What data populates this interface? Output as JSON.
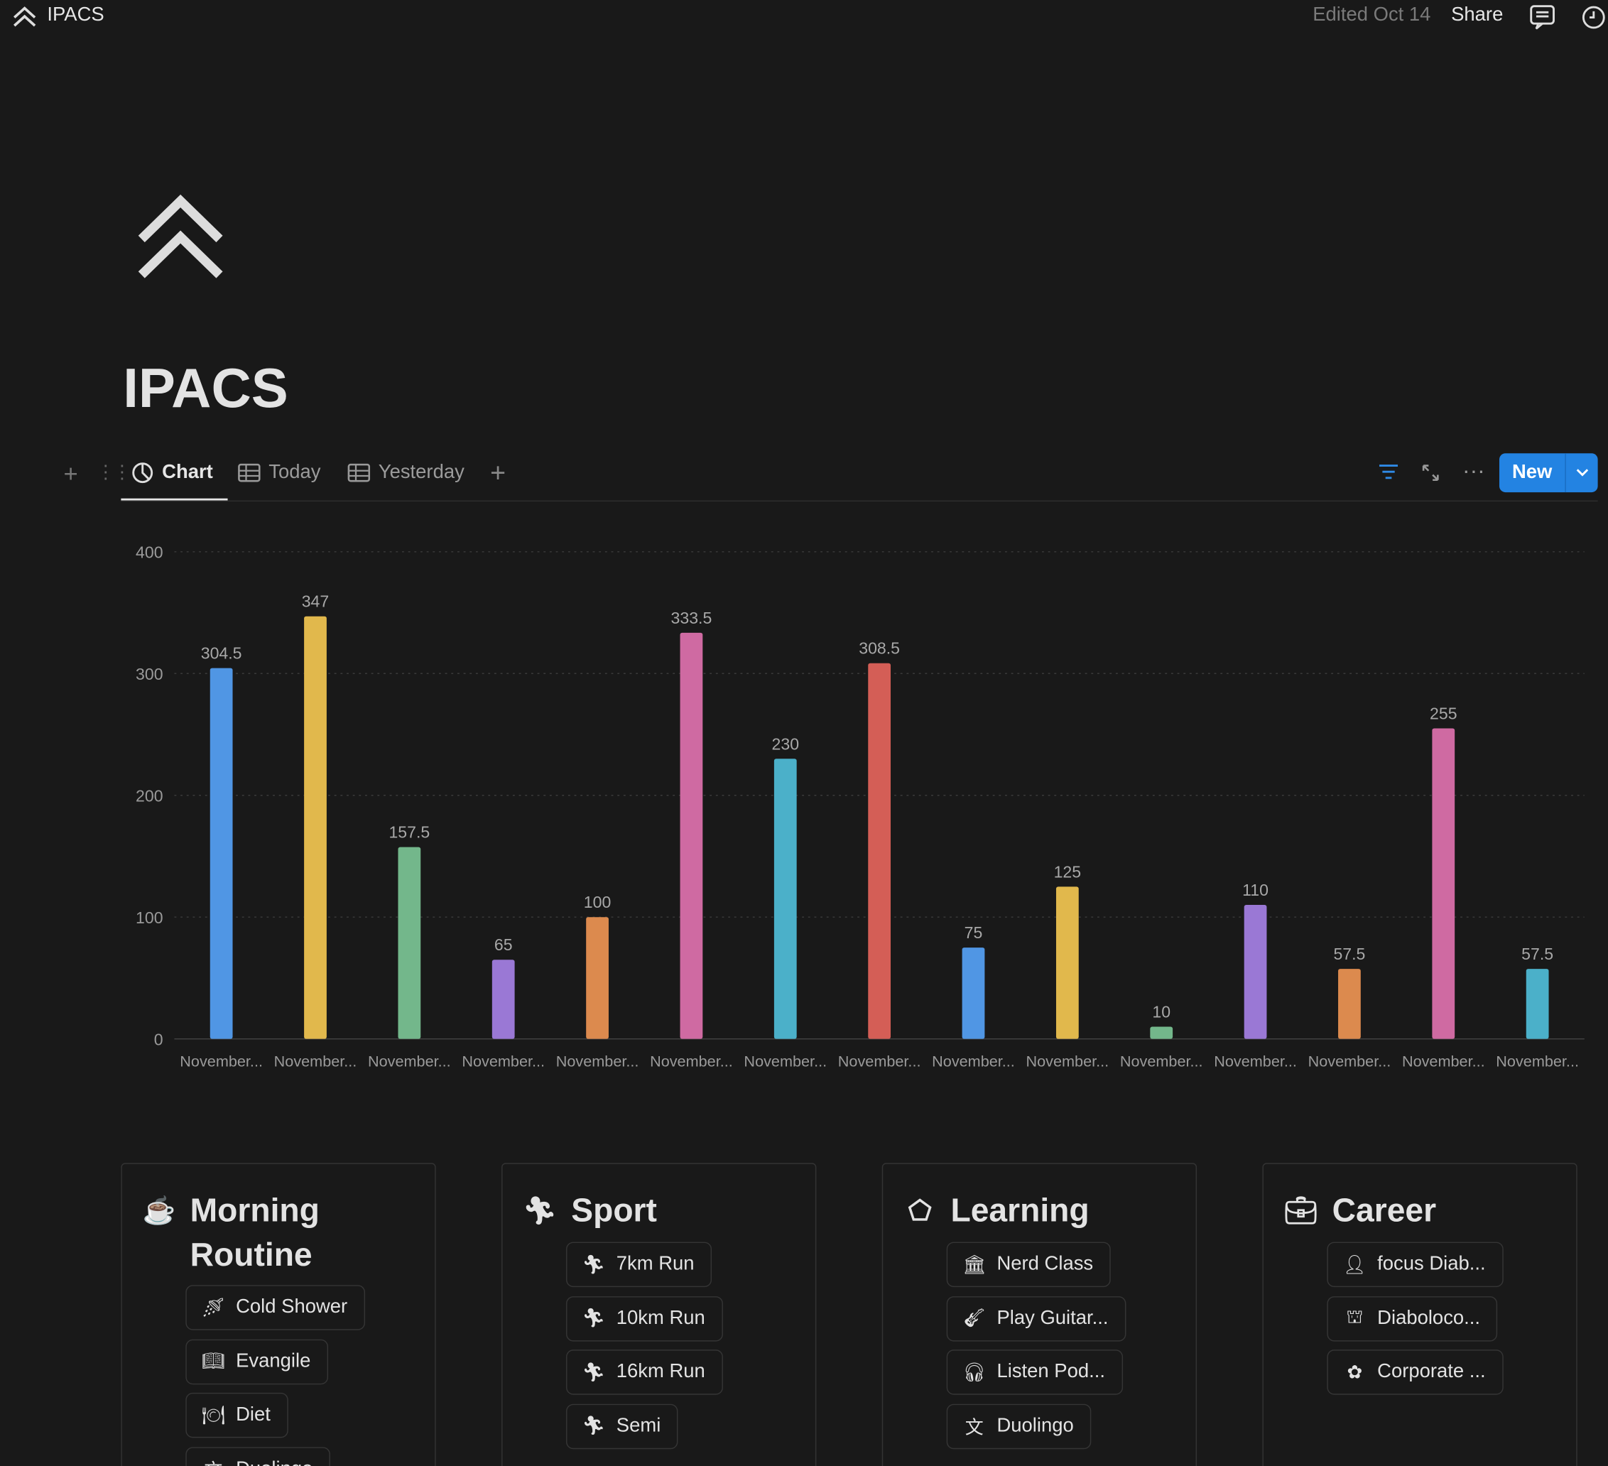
{
  "topbar": {
    "title": "IPACS",
    "edited": "Edited Oct 14",
    "share": "Share",
    "icons": [
      "double-chevron-up-icon",
      "comment-icon",
      "clock-icon"
    ]
  },
  "page": {
    "title": "IPACS",
    "icon": "double-chevron-up-icon"
  },
  "tabs": [
    {
      "label": "Chart",
      "icon": "chart-icon",
      "active": true
    },
    {
      "label": "Today",
      "icon": "table-icon"
    },
    {
      "label": "Yesterday",
      "icon": "table-icon"
    }
  ],
  "toolbar": {
    "new_label": "New"
  },
  "chart_data": {
    "type": "bar",
    "categories": [
      "November...",
      "November...",
      "November...",
      "November...",
      "November...",
      "November...",
      "November...",
      "November...",
      "November...",
      "November...",
      "November...",
      "November...",
      "November...",
      "November...",
      "November..."
    ],
    "values": [
      304.5,
      347,
      157.5,
      65,
      100,
      333.5,
      230,
      308.5,
      75,
      125,
      10,
      110,
      57.5,
      255,
      57.5
    ],
    "colors": [
      "#5096e4",
      "#e1b84c",
      "#73b78b",
      "#9a78d5",
      "#dc8a4e",
      "#cf6aa2",
      "#4bb0c9",
      "#d45e56",
      "#5096e4",
      "#e1b84c",
      "#73b78b",
      "#9a78d5",
      "#dc8a4e",
      "#cf6aa2",
      "#4bb0c9"
    ],
    "yticks": [
      0,
      100,
      200,
      300,
      400
    ],
    "ylim": [
      0,
      400
    ],
    "grid": true,
    "data_labels": true
  },
  "cards": [
    {
      "title": "Morning Routine",
      "icon": "coffee-cup-icon",
      "items": [
        {
          "label": "Cold Shower",
          "icon": "shower-icon"
        },
        {
          "label": "Evangile",
          "icon": "book-icon"
        },
        {
          "label": "Diet",
          "icon": "plate-icon"
        },
        {
          "label": "Duolingo",
          "icon": "translate-icon"
        }
      ]
    },
    {
      "title": "Sport",
      "icon": "running-icon",
      "items": [
        {
          "label": "7km Run",
          "icon": "running-icon"
        },
        {
          "label": "10km Run",
          "icon": "running-icon"
        },
        {
          "label": "16km Run",
          "icon": "running-icon"
        },
        {
          "label": "Semi",
          "icon": "running-icon"
        }
      ]
    },
    {
      "title": "Learning",
      "icon": "pentagon-icon",
      "items": [
        {
          "label": "Nerd Class",
          "icon": "bank-icon"
        },
        {
          "label": "Play Guitar...",
          "icon": "guitar-icon"
        },
        {
          "label": "Listen Pod...",
          "icon": "headphones-icon"
        },
        {
          "label": "Duolingo",
          "icon": "translate-icon"
        }
      ]
    },
    {
      "title": "Career",
      "icon": "briefcase-icon",
      "items": [
        {
          "label": "focus Diab...",
          "icon": "head-icon"
        },
        {
          "label": "Diaboloco...",
          "icon": "presentation-icon"
        },
        {
          "label": "Corporate ...",
          "icon": "network-icon"
        }
      ]
    }
  ]
}
